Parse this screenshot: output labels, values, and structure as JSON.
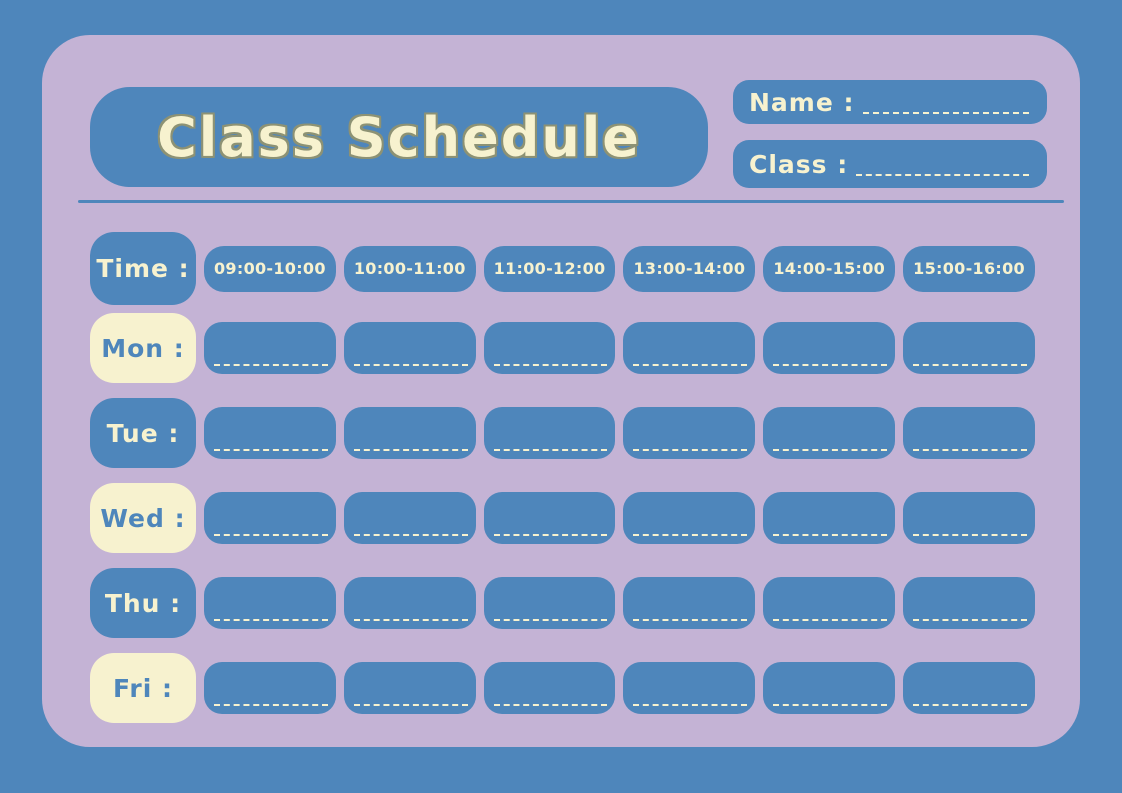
{
  "page": {
    "title": "Class Schedule",
    "name_label": "Name :",
    "class_label": "Class :"
  },
  "schedule": {
    "time_header": "Time :",
    "time_slots": [
      "09:00-10:00",
      "10:00-11:00",
      "11:00-12:00",
      "13:00-14:00",
      "14:00-15:00",
      "15:00-16:00"
    ],
    "days": [
      {
        "key": "mon",
        "label": "Mon :",
        "style": "cream"
      },
      {
        "key": "tue",
        "label": "Tue :",
        "style": "blue"
      },
      {
        "key": "wed",
        "label": "Wed :",
        "style": "cream"
      },
      {
        "key": "thu",
        "label": "Thu :",
        "style": "blue"
      },
      {
        "key": "fri",
        "label": "Fri :",
        "style": "cream"
      }
    ],
    "cells_per_row": 6,
    "cell_value": ""
  },
  "colors": {
    "background_blue": "#4e86bb",
    "card_lavender": "#c4b3d5",
    "cream": "#f7f2cf",
    "title_shadow": "#8d9274"
  }
}
